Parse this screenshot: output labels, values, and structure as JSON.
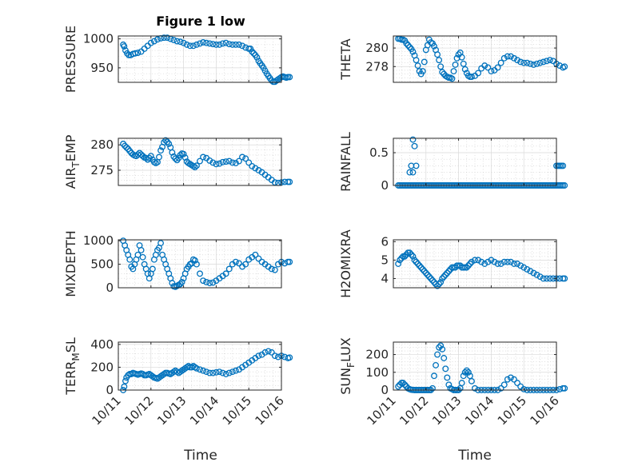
{
  "figure": {
    "title": "Figure 1 low",
    "xlabel": "Time",
    "marker_color": "#0072bd",
    "xticks": [
      "10/11",
      "10/12",
      "10/13",
      "10/14",
      "10/15",
      "10/16"
    ]
  },
  "chart_data": [
    {
      "type": "scatter",
      "id": "pressure",
      "ylabel_main": "PRESSURE",
      "ylabel_sub": "",
      "ylabel_tail": "",
      "ylim": [
        925,
        1005
      ],
      "yticks": [
        950,
        1000
      ],
      "xlim": [
        0,
        5
      ],
      "grid": true,
      "minor_grid": true,
      "x": [
        0.15,
        0.18,
        0.22,
        0.27,
        0.32,
        0.38,
        0.45,
        0.52,
        0.6,
        0.7,
        0.8,
        0.9,
        1.0,
        1.1,
        1.2,
        1.3,
        1.4,
        1.5,
        1.6,
        1.7,
        1.8,
        1.9,
        2.0,
        2.1,
        2.2,
        2.3,
        2.4,
        2.5,
        2.6,
        2.7,
        2.8,
        2.9,
        3.0,
        3.1,
        3.2,
        3.3,
        3.4,
        3.5,
        3.6,
        3.7,
        3.8,
        3.9,
        4.0,
        4.05,
        4.1,
        4.15,
        4.2,
        4.25,
        4.3,
        4.35,
        4.4,
        4.45,
        4.5,
        4.55,
        4.6,
        4.65,
        4.7,
        4.75,
        4.8,
        4.85,
        4.9,
        4.95,
        5.0,
        5.05,
        5.1,
        5.15,
        5.2,
        5.25
      ],
      "y": [
        990,
        987,
        980,
        975,
        972,
        972,
        974,
        975,
        976,
        978,
        983,
        988,
        993,
        996,
        999,
        1001,
        1002,
        1002,
        1000,
        998,
        996,
        995,
        993,
        990,
        988,
        988,
        990,
        992,
        994,
        993,
        992,
        991,
        990,
        990,
        992,
        993,
        991,
        990,
        990,
        990,
        988,
        985,
        983,
        983,
        978,
        975,
        972,
        968,
        962,
        958,
        954,
        950,
        945,
        940,
        936,
        932,
        928,
        926,
        926,
        928,
        930,
        932,
        934,
        935,
        934,
        933,
        934,
        934
      ]
    },
    {
      "type": "scatter",
      "id": "theta",
      "ylabel_main": "THETA",
      "ylabel_sub": "",
      "ylabel_tail": "",
      "ylim": [
        276.3,
        281.3
      ],
      "yticks": [
        278,
        280
      ],
      "xlim": [
        0,
        5
      ],
      "grid": true,
      "minor_grid": true,
      "x": [
        0.15,
        0.2,
        0.25,
        0.3,
        0.35,
        0.4,
        0.45,
        0.5,
        0.55,
        0.6,
        0.65,
        0.7,
        0.75,
        0.8,
        0.85,
        0.9,
        0.95,
        1.0,
        1.05,
        1.1,
        1.15,
        1.2,
        1.25,
        1.3,
        1.35,
        1.4,
        1.45,
        1.5,
        1.55,
        1.6,
        1.65,
        1.7,
        1.75,
        1.8,
        1.85,
        1.9,
        1.95,
        2.0,
        2.05,
        2.1,
        2.15,
        2.2,
        2.25,
        2.3,
        2.35,
        2.4,
        2.5,
        2.6,
        2.7,
        2.8,
        2.9,
        3.0,
        3.1,
        3.2,
        3.3,
        3.4,
        3.5,
        3.6,
        3.7,
        3.8,
        3.9,
        4.0,
        4.1,
        4.2,
        4.3,
        4.4,
        4.5,
        4.6,
        4.7,
        4.8,
        4.9,
        5.0,
        5.1,
        5.2,
        5.25
      ],
      "y": [
        281,
        281,
        280.9,
        280.9,
        280.8,
        280.5,
        280.3,
        280.1,
        279.9,
        279.6,
        279.2,
        278.7,
        278.1,
        277.5,
        277.2,
        277.5,
        278.5,
        279.8,
        280.3,
        280.9,
        280.6,
        280.5,
        280.2,
        279.8,
        279.3,
        278.7,
        278,
        277.4,
        277.2,
        277,
        276.9,
        276.8,
        276.8,
        276.7,
        277.5,
        278.2,
        278.9,
        279.3,
        279.5,
        279,
        278.3,
        277.7,
        277.3,
        277,
        276.9,
        276.9,
        277,
        277.3,
        277.8,
        278.1,
        277.9,
        277.5,
        277.6,
        277.9,
        278.4,
        278.9,
        279.1,
        279.1,
        278.9,
        278.7,
        278.5,
        278.4,
        278.4,
        278.3,
        278.2,
        278.3,
        278.4,
        278.5,
        278.6,
        278.7,
        278.6,
        278.3,
        278.1,
        277.9,
        278
      ]
    },
    {
      "type": "scatter",
      "id": "air_temp",
      "ylabel_main": "AIR",
      "ylabel_sub": "T",
      "ylabel_tail": "EMP",
      "ylim": [
        272,
        281.3
      ],
      "yticks": [
        275,
        280
      ],
      "xlim": [
        0,
        5
      ],
      "grid": true,
      "minor_grid": true,
      "x": [
        0.15,
        0.2,
        0.25,
        0.3,
        0.35,
        0.4,
        0.45,
        0.5,
        0.55,
        0.6,
        0.65,
        0.7,
        0.75,
        0.8,
        0.85,
        0.9,
        0.95,
        1.0,
        1.05,
        1.1,
        1.15,
        1.2,
        1.25,
        1.3,
        1.35,
        1.4,
        1.45,
        1.5,
        1.55,
        1.6,
        1.65,
        1.7,
        1.75,
        1.8,
        1.85,
        1.9,
        1.95,
        2.0,
        2.05,
        2.1,
        2.15,
        2.2,
        2.25,
        2.3,
        2.35,
        2.4,
        2.5,
        2.6,
        2.7,
        2.8,
        2.9,
        3.0,
        3.1,
        3.2,
        3.3,
        3.4,
        3.5,
        3.6,
        3.7,
        3.8,
        3.9,
        4.0,
        4.1,
        4.2,
        4.3,
        4.4,
        4.5,
        4.6,
        4.7,
        4.8,
        4.9,
        5.0,
        5.1,
        5.2,
        5.25
      ],
      "y": [
        280.2,
        279.8,
        279.5,
        279.2,
        278.8,
        278.4,
        278.1,
        277.9,
        277.8,
        278.1,
        278.4,
        278.1,
        277.8,
        277.5,
        277.4,
        277.1,
        277.4,
        277.8,
        277.1,
        276.6,
        276.4,
        276.6,
        277.6,
        278.9,
        279.6,
        280.5,
        280.9,
        280.6,
        280.2,
        279.5,
        278.5,
        277.7,
        277.3,
        277,
        277.4,
        278,
        278.3,
        278.2,
        277.5,
        276.7,
        276.4,
        276.2,
        276,
        275.8,
        275.6,
        275.9,
        276.8,
        277.6,
        277.4,
        276.9,
        276.5,
        276.2,
        276.3,
        276.6,
        276.7,
        276.8,
        276.5,
        276.4,
        276.8,
        277.6,
        277.3,
        276.5,
        275.8,
        275.4,
        275,
        274.6,
        274.1,
        273.6,
        273.1,
        272.6,
        272.5,
        272.6,
        272.7,
        272.7,
        272.7
      ]
    },
    {
      "type": "scatter",
      "id": "rainfall",
      "ylabel_main": "RAINFALL",
      "ylabel_sub": "",
      "ylabel_tail": "",
      "ylim": [
        0,
        0.72
      ],
      "yticks": [
        0,
        0.5
      ],
      "xlim": [
        0,
        5
      ],
      "grid": true,
      "minor_grid": true,
      "x": [
        0.15,
        0.2,
        0.25,
        0.3,
        0.35,
        0.4,
        0.45,
        0.5,
        0.5,
        0.55,
        0.55,
        0.6,
        0.6,
        0.6,
        0.65,
        0.65,
        0.7,
        0.7,
        0.75,
        0.8,
        0.85,
        0.9,
        0.95,
        1.0,
        1.05,
        1.1,
        1.15,
        1.2,
        1.25,
        1.3,
        1.35,
        1.4,
        1.45,
        1.5,
        1.55,
        1.6,
        1.65,
        1.7,
        1.75,
        1.8,
        1.85,
        1.9,
        1.95,
        2.0,
        2.05,
        2.1,
        2.15,
        2.2,
        2.25,
        2.3,
        2.35,
        2.4,
        2.45,
        2.5,
        2.55,
        2.6,
        2.65,
        2.7,
        2.75,
        2.8,
        2.85,
        2.9,
        2.95,
        3.0,
        3.05,
        3.1,
        3.15,
        3.2,
        3.25,
        3.3,
        3.35,
        3.4,
        3.45,
        3.5,
        3.55,
        3.6,
        3.65,
        3.7,
        3.75,
        3.8,
        3.85,
        3.9,
        3.95,
        4.0,
        4.05,
        4.1,
        4.15,
        4.2,
        4.25,
        4.3,
        4.35,
        4.4,
        4.45,
        4.5,
        4.55,
        4.6,
        4.65,
        4.7,
        4.75,
        4.8,
        4.85,
        4.9,
        4.95,
        5.0,
        5.0,
        5.05,
        5.05,
        5.1,
        5.1,
        5.15,
        5.15,
        5.2,
        5.2,
        5.25
      ],
      "y": [
        0,
        0,
        0,
        0,
        0,
        0,
        0,
        0,
        0.2,
        0,
        0.3,
        0,
        0.2,
        0.7,
        0,
        0.6,
        0,
        0.3,
        0,
        0,
        0,
        0,
        0,
        0,
        0,
        0,
        0,
        0,
        0,
        0,
        0,
        0,
        0,
        0,
        0,
        0,
        0,
        0,
        0,
        0,
        0,
        0,
        0,
        0,
        0,
        0,
        0,
        0,
        0,
        0,
        0,
        0,
        0,
        0,
        0,
        0,
        0,
        0,
        0,
        0,
        0,
        0,
        0,
        0,
        0,
        0,
        0,
        0,
        0,
        0,
        0,
        0,
        0,
        0,
        0,
        0,
        0,
        0,
        0,
        0,
        0,
        0,
        0,
        0,
        0,
        0,
        0,
        0,
        0,
        0,
        0,
        0,
        0,
        0,
        0,
        0,
        0,
        0,
        0,
        0,
        0,
        0,
        0,
        0,
        0.3,
        0,
        0.3,
        0,
        0.3,
        0,
        0.3,
        0,
        0.3,
        0
      ]
    },
    {
      "type": "scatter",
      "id": "mixdepth",
      "ylabel_main": "MIXDEPTH",
      "ylabel_sub": "",
      "ylabel_tail": "",
      "ylim": [
        0,
        1020
      ],
      "yticks": [
        0,
        500,
        1000
      ],
      "xlim": [
        0,
        5
      ],
      "grid": true,
      "minor_grid": true,
      "x": [
        0.15,
        0.2,
        0.25,
        0.3,
        0.35,
        0.4,
        0.45,
        0.5,
        0.55,
        0.6,
        0.65,
        0.7,
        0.75,
        0.8,
        0.85,
        0.9,
        0.95,
        1.0,
        1.05,
        1.1,
        1.15,
        1.2,
        1.25,
        1.3,
        1.35,
        1.4,
        1.45,
        1.5,
        1.55,
        1.6,
        1.65,
        1.7,
        1.75,
        1.8,
        1.85,
        1.9,
        1.95,
        2.0,
        2.05,
        2.1,
        2.15,
        2.2,
        2.25,
        2.3,
        2.35,
        2.4,
        2.5,
        2.6,
        2.7,
        2.8,
        2.9,
        3.0,
        3.1,
        3.2,
        3.3,
        3.4,
        3.5,
        3.6,
        3.7,
        3.8,
        3.9,
        4.0,
        4.1,
        4.2,
        4.3,
        4.4,
        4.5,
        4.6,
        4.7,
        4.8,
        4.9,
        5.0,
        5.1,
        5.2,
        5.25
      ],
      "y": [
        1000,
        900,
        800,
        700,
        600,
        450,
        400,
        500,
        600,
        700,
        900,
        800,
        650,
        500,
        400,
        300,
        200,
        300,
        400,
        600,
        700,
        800,
        850,
        950,
        700,
        600,
        500,
        400,
        300,
        200,
        100,
        30,
        20,
        40,
        60,
        80,
        120,
        200,
        300,
        400,
        450,
        500,
        520,
        600,
        580,
        500,
        300,
        150,
        120,
        100,
        110,
        150,
        200,
        250,
        300,
        400,
        500,
        550,
        520,
        450,
        500,
        600,
        650,
        700,
        620,
        550,
        500,
        450,
        400,
        380,
        500,
        550,
        520,
        550,
        550
      ]
    },
    {
      "type": "scatter",
      "id": "h2omixra",
      "ylabel_main": "H2OMIXRA",
      "ylabel_sub": "",
      "ylabel_tail": "",
      "ylim": [
        3.5,
        6.1
      ],
      "yticks": [
        4,
        5,
        6
      ],
      "xlim": [
        0,
        5
      ],
      "grid": true,
      "minor_grid": true,
      "x": [
        0.15,
        0.2,
        0.25,
        0.3,
        0.35,
        0.4,
        0.45,
        0.5,
        0.55,
        0.6,
        0.65,
        0.7,
        0.75,
        0.8,
        0.85,
        0.9,
        0.95,
        1.0,
        1.05,
        1.1,
        1.15,
        1.2,
        1.25,
        1.3,
        1.35,
        1.4,
        1.45,
        1.5,
        1.55,
        1.6,
        1.65,
        1.7,
        1.75,
        1.8,
        1.85,
        1.9,
        1.95,
        2.0,
        2.05,
        2.1,
        2.15,
        2.2,
        2.25,
        2.3,
        2.35,
        2.4,
        2.5,
        2.6,
        2.7,
        2.8,
        2.9,
        3.0,
        3.1,
        3.2,
        3.3,
        3.4,
        3.5,
        3.6,
        3.7,
        3.8,
        3.9,
        4.0,
        4.1,
        4.2,
        4.3,
        4.4,
        4.5,
        4.6,
        4.7,
        4.8,
        4.9,
        5.0,
        5.1,
        5.2,
        5.25
      ],
      "y": [
        4.8,
        5.0,
        5.1,
        5.2,
        5.2,
        5.3,
        5.4,
        5.4,
        5.3,
        5.2,
        5.0,
        4.9,
        4.8,
        4.7,
        4.6,
        4.5,
        4.4,
        4.3,
        4.2,
        4.1,
        4.0,
        3.9,
        3.8,
        3.7,
        3.6,
        3.7,
        3.8,
        4.0,
        4.1,
        4.2,
        4.3,
        4.4,
        4.5,
        4.6,
        4.6,
        4.6,
        4.7,
        4.7,
        4.7,
        4.6,
        4.6,
        4.6,
        4.6,
        4.7,
        4.8,
        4.9,
        5.0,
        5.0,
        4.9,
        4.8,
        4.9,
        5.0,
        4.9,
        4.8,
        4.8,
        4.9,
        4.9,
        4.9,
        4.8,
        4.8,
        4.7,
        4.6,
        4.5,
        4.4,
        4.3,
        4.2,
        4.1,
        4.0,
        4.0,
        4.0,
        4.0,
        4.0,
        4.0,
        4.0,
        4.0
      ]
    },
    {
      "type": "scatter",
      "id": "terr_msl",
      "ylabel_main": "TERR",
      "ylabel_sub": "M",
      "ylabel_tail": "SL",
      "ylim": [
        0,
        420
      ],
      "yticks": [
        0,
        200,
        400
      ],
      "xlim": [
        0,
        5
      ],
      "grid": true,
      "minor_grid": true,
      "x": [
        0.15,
        0.18,
        0.22,
        0.25,
        0.3,
        0.35,
        0.4,
        0.45,
        0.5,
        0.55,
        0.6,
        0.65,
        0.7,
        0.75,
        0.8,
        0.85,
        0.9,
        0.95,
        1.0,
        1.05,
        1.1,
        1.15,
        1.2,
        1.25,
        1.3,
        1.35,
        1.4,
        1.45,
        1.5,
        1.55,
        1.6,
        1.65,
        1.7,
        1.75,
        1.8,
        1.85,
        1.9,
        1.95,
        2.0,
        2.05,
        2.1,
        2.15,
        2.2,
        2.25,
        2.3,
        2.35,
        2.4,
        2.5,
        2.6,
        2.7,
        2.8,
        2.9,
        3.0,
        3.1,
        3.2,
        3.3,
        3.4,
        3.5,
        3.6,
        3.7,
        3.8,
        3.9,
        4.0,
        4.1,
        4.2,
        4.3,
        4.4,
        4.5,
        4.6,
        4.7,
        4.8,
        4.9,
        5.0,
        5.1,
        5.2,
        5.25
      ],
      "y": [
        0,
        30,
        80,
        110,
        130,
        140,
        140,
        150,
        145,
        140,
        135,
        140,
        145,
        140,
        130,
        130,
        135,
        140,
        130,
        120,
        110,
        105,
        100,
        110,
        120,
        130,
        140,
        150,
        150,
        145,
        140,
        150,
        160,
        170,
        160,
        150,
        160,
        170,
        180,
        190,
        200,
        210,
        200,
        200,
        210,
        200,
        190,
        180,
        170,
        160,
        150,
        150,
        155,
        160,
        150,
        140,
        150,
        160,
        170,
        180,
        200,
        220,
        240,
        260,
        280,
        300,
        310,
        330,
        340,
        330,
        300,
        290,
        300,
        290,
        280,
        285
      ]
    },
    {
      "type": "scatter",
      "id": "sun_flux",
      "ylabel_main": "SUN",
      "ylabel_sub": "F",
      "ylabel_tail": "LUX",
      "ylim": [
        0,
        270
      ],
      "yticks": [
        0,
        100,
        200
      ],
      "xlim": [
        0,
        5
      ],
      "grid": true,
      "minor_grid": true,
      "x": [
        0.15,
        0.2,
        0.25,
        0.3,
        0.35,
        0.4,
        0.45,
        0.5,
        0.55,
        0.6,
        0.65,
        0.7,
        0.75,
        0.8,
        0.85,
        0.9,
        0.95,
        1.0,
        1.05,
        1.1,
        1.15,
        1.2,
        1.25,
        1.3,
        1.35,
        1.4,
        1.45,
        1.5,
        1.55,
        1.6,
        1.65,
        1.7,
        1.75,
        1.8,
        1.85,
        1.9,
        1.95,
        2.0,
        2.05,
        2.1,
        2.15,
        2.2,
        2.25,
        2.3,
        2.35,
        2.4,
        2.5,
        2.6,
        2.7,
        2.8,
        2.9,
        3.0,
        3.1,
        3.2,
        3.3,
        3.4,
        3.5,
        3.6,
        3.7,
        3.8,
        3.9,
        4.0,
        4.1,
        4.2,
        4.3,
        4.4,
        4.5,
        4.6,
        4.7,
        4.8,
        4.9,
        5.0,
        5.1,
        5.2,
        5.25
      ],
      "y": [
        20,
        30,
        40,
        40,
        30,
        20,
        10,
        5,
        2,
        1,
        0,
        0,
        0,
        0,
        0,
        0,
        0,
        0,
        0,
        0,
        0,
        10,
        80,
        140,
        200,
        240,
        250,
        230,
        180,
        120,
        70,
        30,
        10,
        5,
        0,
        0,
        0,
        0,
        10,
        40,
        80,
        100,
        110,
        100,
        80,
        50,
        10,
        0,
        0,
        0,
        0,
        0,
        0,
        0,
        10,
        30,
        60,
        70,
        60,
        40,
        20,
        5,
        0,
        0,
        0,
        0,
        0,
        0,
        0,
        0,
        0,
        0,
        5,
        10,
        10
      ]
    }
  ]
}
